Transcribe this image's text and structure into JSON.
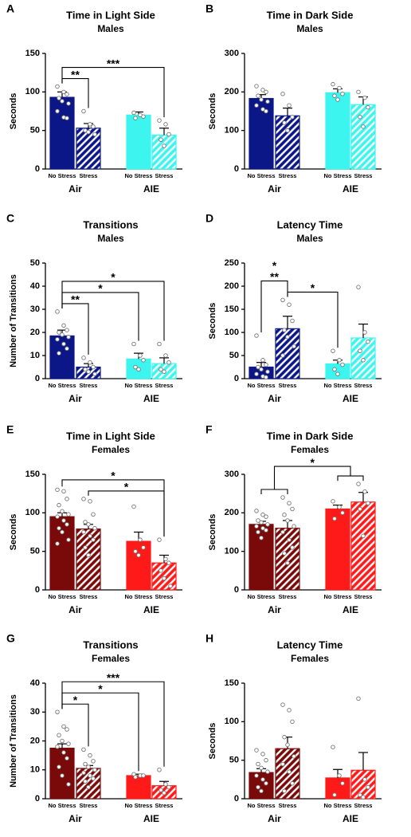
{
  "chart_data": [
    {
      "type": "bar",
      "panel": "A",
      "title": "Time in Light Side",
      "subtitle": "Males",
      "ylabel": "Seconds",
      "ylim": [
        0,
        150
      ],
      "yticks": [
        0,
        50,
        100,
        150
      ],
      "groups": [
        "Air",
        "AIE"
      ],
      "categories": [
        "No Stress",
        "Stress",
        "No Stress",
        "Stress"
      ],
      "colors": [
        "#0c1787",
        "#0c1787",
        "#3cf5ee",
        "#3cf5ee"
      ],
      "hatched": [
        false,
        true,
        false,
        true
      ],
      "values": [
        93,
        53,
        70,
        44
      ],
      "errors": [
        7,
        6,
        4,
        9
      ],
      "points": [
        [
          107,
          100,
          97,
          92,
          88,
          85,
          75,
          67,
          66
        ],
        [
          75,
          58,
          55,
          50,
          48,
          45
        ],
        [
          73,
          70,
          68,
          66
        ],
        [
          63,
          58,
          45,
          38,
          30
        ]
      ],
      "significance": [
        {
          "from": 0,
          "to": 1,
          "label": "**"
        },
        {
          "from": 0,
          "to": 3,
          "label": "***"
        }
      ]
    },
    {
      "type": "bar",
      "panel": "B",
      "title": "Time in Dark Side",
      "subtitle": "Males",
      "ylabel": "Seconds",
      "ylim": [
        0,
        300
      ],
      "yticks": [
        0,
        100,
        200,
        300
      ],
      "groups": [
        "Air",
        "AIE"
      ],
      "categories": [
        "No Stress",
        "Stress",
        "No Stress",
        "Stress"
      ],
      "colors": [
        "#0c1787",
        "#0c1787",
        "#3cf5ee",
        "#3cf5ee"
      ],
      "hatched": [
        false,
        true,
        false,
        true
      ],
      "values": [
        183,
        138,
        198,
        167
      ],
      "errors": [
        10,
        20,
        10,
        20
      ],
      "points": [
        [
          215,
          205,
          200,
          190,
          180,
          175,
          165,
          155,
          150
        ],
        [
          195,
          165,
          135,
          120,
          100
        ],
        [
          220,
          210,
          195,
          190,
          180
        ],
        [
          200,
          185,
          160,
          135,
          110
        ]
      ],
      "significance": []
    },
    {
      "type": "bar",
      "panel": "C",
      "title": "Transitions",
      "subtitle": "Males",
      "ylabel": "Number of Transitions",
      "ylim": [
        0,
        50
      ],
      "yticks": [
        0,
        10,
        20,
        30,
        40,
        50
      ],
      "groups": [
        "Air",
        "AIE"
      ],
      "categories": [
        "No Stress",
        "Stress",
        "No Stress",
        "Stress"
      ],
      "colors": [
        "#0c1787",
        "#0c1787",
        "#3cf5ee",
        "#3cf5ee"
      ],
      "hatched": [
        false,
        true,
        false,
        true
      ],
      "values": [
        18.5,
        5,
        8.5,
        6.5
      ],
      "errors": [
        2.5,
        1.5,
        2.5,
        2.5
      ],
      "points": [
        [
          29,
          23,
          21,
          20,
          19,
          18,
          17,
          15,
          13,
          11
        ],
        [
          9,
          7,
          5,
          4,
          3,
          2
        ],
        [
          15,
          10,
          8,
          5,
          4
        ],
        [
          15,
          10,
          7,
          4,
          3
        ]
      ],
      "significance": [
        {
          "from": 0,
          "to": 1,
          "label": "**"
        },
        {
          "from": 0,
          "to": 2,
          "label": "*"
        },
        {
          "from": 0,
          "to": 3,
          "label": "*"
        }
      ]
    },
    {
      "type": "bar",
      "panel": "D",
      "title": "Latency Time",
      "subtitle": "Males",
      "ylabel": "Seconds",
      "ylim": [
        0,
        250
      ],
      "yticks": [
        0,
        50,
        100,
        150,
        200,
        250
      ],
      "groups": [
        "Air",
        "AIE"
      ],
      "categories": [
        "No Stress",
        "Stress",
        "No Stress",
        "Stress"
      ],
      "colors": [
        "#0c1787",
        "#0c1787",
        "#3cf5ee",
        "#3cf5ee"
      ],
      "hatched": [
        false,
        true,
        false,
        true
      ],
      "values": [
        25,
        108,
        32,
        88
      ],
      "errors": [
        10,
        27,
        8,
        30
      ],
      "points": [
        [
          93,
          40,
          30,
          25,
          20,
          15,
          10,
          5,
          3
        ],
        [
          170,
          160,
          125,
          105,
          90,
          70,
          50
        ],
        [
          60,
          40,
          30,
          20,
          10
        ],
        [
          198,
          100,
          80,
          60,
          40
        ]
      ],
      "significance": [
        {
          "from": 1,
          "to": 2,
          "label": "*"
        },
        {
          "from": 0,
          "to": 1,
          "label": [
            "*",
            "**"
          ]
        }
      ]
    },
    {
      "type": "bar",
      "panel": "E",
      "title": "Time in Light Side",
      "subtitle": "Females",
      "ylabel": "Seconds",
      "ylim": [
        0,
        150
      ],
      "yticks": [
        0,
        50,
        100,
        150
      ],
      "groups": [
        "Air",
        "AIE"
      ],
      "categories": [
        "No Stress",
        "Stress",
        "No Stress",
        "Stress"
      ],
      "colors": [
        "#7a0a0a",
        "#7a0a0a",
        "#ff1a1a",
        "#ff1a1a"
      ],
      "hatched": [
        false,
        true,
        false,
        true
      ],
      "values": [
        95,
        79,
        63,
        35
      ],
      "errors": [
        5,
        6,
        12,
        10
      ],
      "points": [
        [
          130,
          128,
          118,
          110,
          102,
          98,
          95,
          90,
          85,
          80,
          75,
          65,
          60
        ],
        [
          118,
          115,
          98,
          88,
          85,
          80,
          75,
          70,
          65,
          55,
          45
        ],
        [
          108,
          65,
          55,
          50,
          45
        ],
        [
          65,
          40,
          35,
          25,
          15,
          5
        ]
      ],
      "significance": [
        {
          "from": 1,
          "to": 3,
          "label": "*"
        },
        {
          "from": 0,
          "to": 3,
          "label": "*"
        }
      ]
    },
    {
      "type": "bar",
      "panel": "F",
      "title": "Time in Dark Side",
      "subtitle": "Females",
      "ylabel": "Seconds",
      "ylim": [
        0,
        300
      ],
      "yticks": [
        0,
        100,
        200,
        300
      ],
      "groups": [
        "Air",
        "AIE"
      ],
      "categories": [
        "No Stress",
        "Stress",
        "No Stress",
        "Stress"
      ],
      "colors": [
        "#7a0a0a",
        "#7a0a0a",
        "#ff1a1a",
        "#ff1a1a"
      ],
      "hatched": [
        false,
        true,
        false,
        true
      ],
      "values": [
        170,
        160,
        210,
        228
      ],
      "errors": [
        8,
        20,
        10,
        25
      ],
      "points": [
        [
          205,
          195,
          190,
          180,
          175,
          170,
          165,
          160,
          155,
          150,
          135
        ],
        [
          240,
          225,
          210,
          195,
          180,
          165,
          150,
          130,
          110,
          95,
          70
        ],
        [
          230,
          215,
          200,
          185
        ],
        [
          275,
          255,
          225,
          210,
          140
        ]
      ],
      "significance": [
        {
          "from": [
            0,
            1
          ],
          "to": [
            2,
            3
          ],
          "label": "*"
        }
      ]
    },
    {
      "type": "bar",
      "panel": "G",
      "title": "Transitions",
      "subtitle": "Females",
      "ylabel": "Number of Transitions",
      "ylim": [
        0,
        40
      ],
      "yticks": [
        0,
        10,
        20,
        30,
        40
      ],
      "groups": [
        "Air",
        "AIE"
      ],
      "categories": [
        "No Stress",
        "Stress",
        "No Stress",
        "Stress"
      ],
      "colors": [
        "#7a0a0a",
        "#7a0a0a",
        "#ff1a1a",
        "#ff1a1a"
      ],
      "hatched": [
        false,
        true,
        false,
        true
      ],
      "values": [
        17.5,
        10.5,
        8,
        4.5
      ],
      "errors": [
        1.5,
        1,
        0.5,
        1.5
      ],
      "points": [
        [
          30,
          25,
          24,
          22,
          20,
          19,
          18,
          16,
          14,
          11,
          8,
          5
        ],
        [
          17,
          15,
          13,
          12,
          11,
          10,
          9,
          8,
          7,
          6,
          4
        ],
        [
          8.5,
          8,
          8,
          7.5
        ],
        [
          10,
          5,
          4,
          3,
          2
        ]
      ],
      "significance": [
        {
          "from": 0,
          "to": 1,
          "label": "*"
        },
        {
          "from": 0,
          "to": 2,
          "label": "*"
        },
        {
          "from": 0,
          "to": 3,
          "label": "***"
        }
      ]
    },
    {
      "type": "bar",
      "panel": "H",
      "title": "Latency Time",
      "subtitle": "Females",
      "ylabel": "Seconds",
      "ylim": [
        0,
        150
      ],
      "yticks": [
        0,
        50,
        100,
        150
      ],
      "groups": [
        "Air",
        "AIE"
      ],
      "categories": [
        "No Stress",
        "Stress",
        "No Stress",
        "Stress"
      ],
      "colors": [
        "#7a0a0a",
        "#7a0a0a",
        "#ff1a1a",
        "#ff1a1a"
      ],
      "hatched": [
        false,
        true,
        false,
        true
      ],
      "values": [
        34,
        65,
        27,
        37
      ],
      "errors": [
        5,
        15,
        11,
        23
      ],
      "points": [
        [
          63,
          58,
          50,
          45,
          40,
          35,
          30,
          25,
          20,
          15,
          10
        ],
        [
          122,
          115,
          100,
          80,
          70,
          55,
          45,
          35,
          20,
          10
        ],
        [
          67,
          30,
          20,
          5
        ],
        [
          130,
          25,
          15,
          5,
          2
        ]
      ],
      "significance": []
    }
  ]
}
